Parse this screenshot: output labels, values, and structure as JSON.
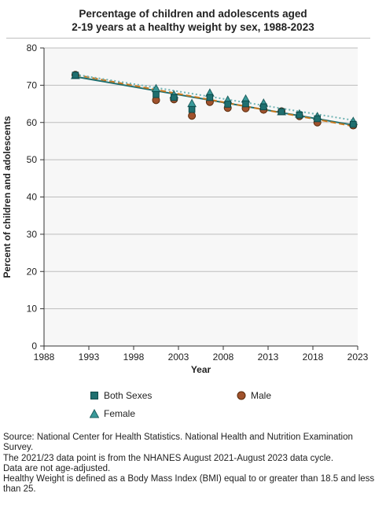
{
  "title_lines": [
    "Percentage of children and adolescents aged",
    "2-19 years at a healthy weight by sex, 1988-2023"
  ],
  "chart_data": {
    "type": "scatter",
    "xlabel": "Year",
    "ylabel": "Percent of children and adolescents",
    "xlim": [
      1988,
      2023
    ],
    "ylim": [
      0,
      80
    ],
    "x_ticks": [
      1988,
      1993,
      1998,
      2003,
      2008,
      2013,
      2018,
      2023
    ],
    "y_ticks": [
      0,
      10,
      20,
      30,
      40,
      50,
      60,
      70,
      80
    ],
    "grid": true,
    "legend_position": "bottom",
    "series": [
      {
        "name": "Both Sexes",
        "color": "#1f6f6f",
        "marker": "square",
        "x": [
          1991.5,
          2000.5,
          2002.5,
          2004.5,
          2006.5,
          2008.5,
          2010.5,
          2012.5,
          2014.5,
          2016.5,
          2018.5,
          2022.5
        ],
        "y": [
          72.7,
          67.5,
          66.7,
          63.5,
          66.7,
          64.9,
          65.0,
          64.2,
          62.9,
          62.0,
          61.0,
          59.5
        ],
        "trend": [
          [
            1991.5,
            72.3
          ],
          [
            2022.5,
            59.3
          ]
        ]
      },
      {
        "name": "Male",
        "color": "#8b4513",
        "marker": "circle",
        "x": [
          1991.5,
          2000.5,
          2002.5,
          2004.5,
          2006.5,
          2008.5,
          2010.5,
          2012.5,
          2014.5,
          2016.5,
          2018.5,
          2022.5
        ],
        "y": [
          72.8,
          66.0,
          66.2,
          61.8,
          65.5,
          63.9,
          63.8,
          63.4,
          63.0,
          61.7,
          60.0,
          59.2
        ],
        "trend": [
          [
            1991.5,
            72.8
          ],
          [
            2022.5,
            59.0
          ]
        ]
      },
      {
        "name": "Female",
        "color": "#3a9a9a",
        "marker": "triangle",
        "x": [
          1991.5,
          2000.5,
          2002.5,
          2004.5,
          2006.5,
          2008.5,
          2010.5,
          2012.5,
          2014.5,
          2016.5,
          2018.5,
          2022.5
        ],
        "y": [
          72.5,
          69.0,
          67.3,
          65.0,
          67.8,
          65.9,
          66.2,
          65.1,
          62.8,
          62.2,
          61.5,
          60.2
        ],
        "trend": [
          [
            1991.5,
            72.9
          ],
          [
            2022.5,
            60.6
          ]
        ]
      }
    ]
  },
  "source_lines": [
    "Source: National Center for Health Statistics. National Health and Nutrition Examination Survey.",
    "The 2021/23 data point is from the NHANES August 2021-August 2023 data cycle.",
    "Data are not age-adjusted.",
    "Healthy Weight is defined as a Body Mass Index (BMI) equal to or greater than 18.5 and less than 25."
  ]
}
